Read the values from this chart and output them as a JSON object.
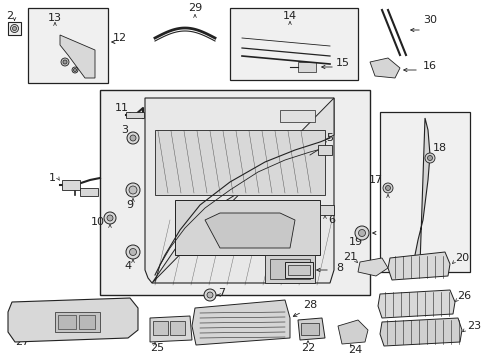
{
  "bg_color": "#ffffff",
  "fig_width": 4.89,
  "fig_height": 3.6,
  "dpi": 100,
  "lc": "#222222",
  "fc_light": "#e8e8e8",
  "fc_mid": "#d0d0d0"
}
